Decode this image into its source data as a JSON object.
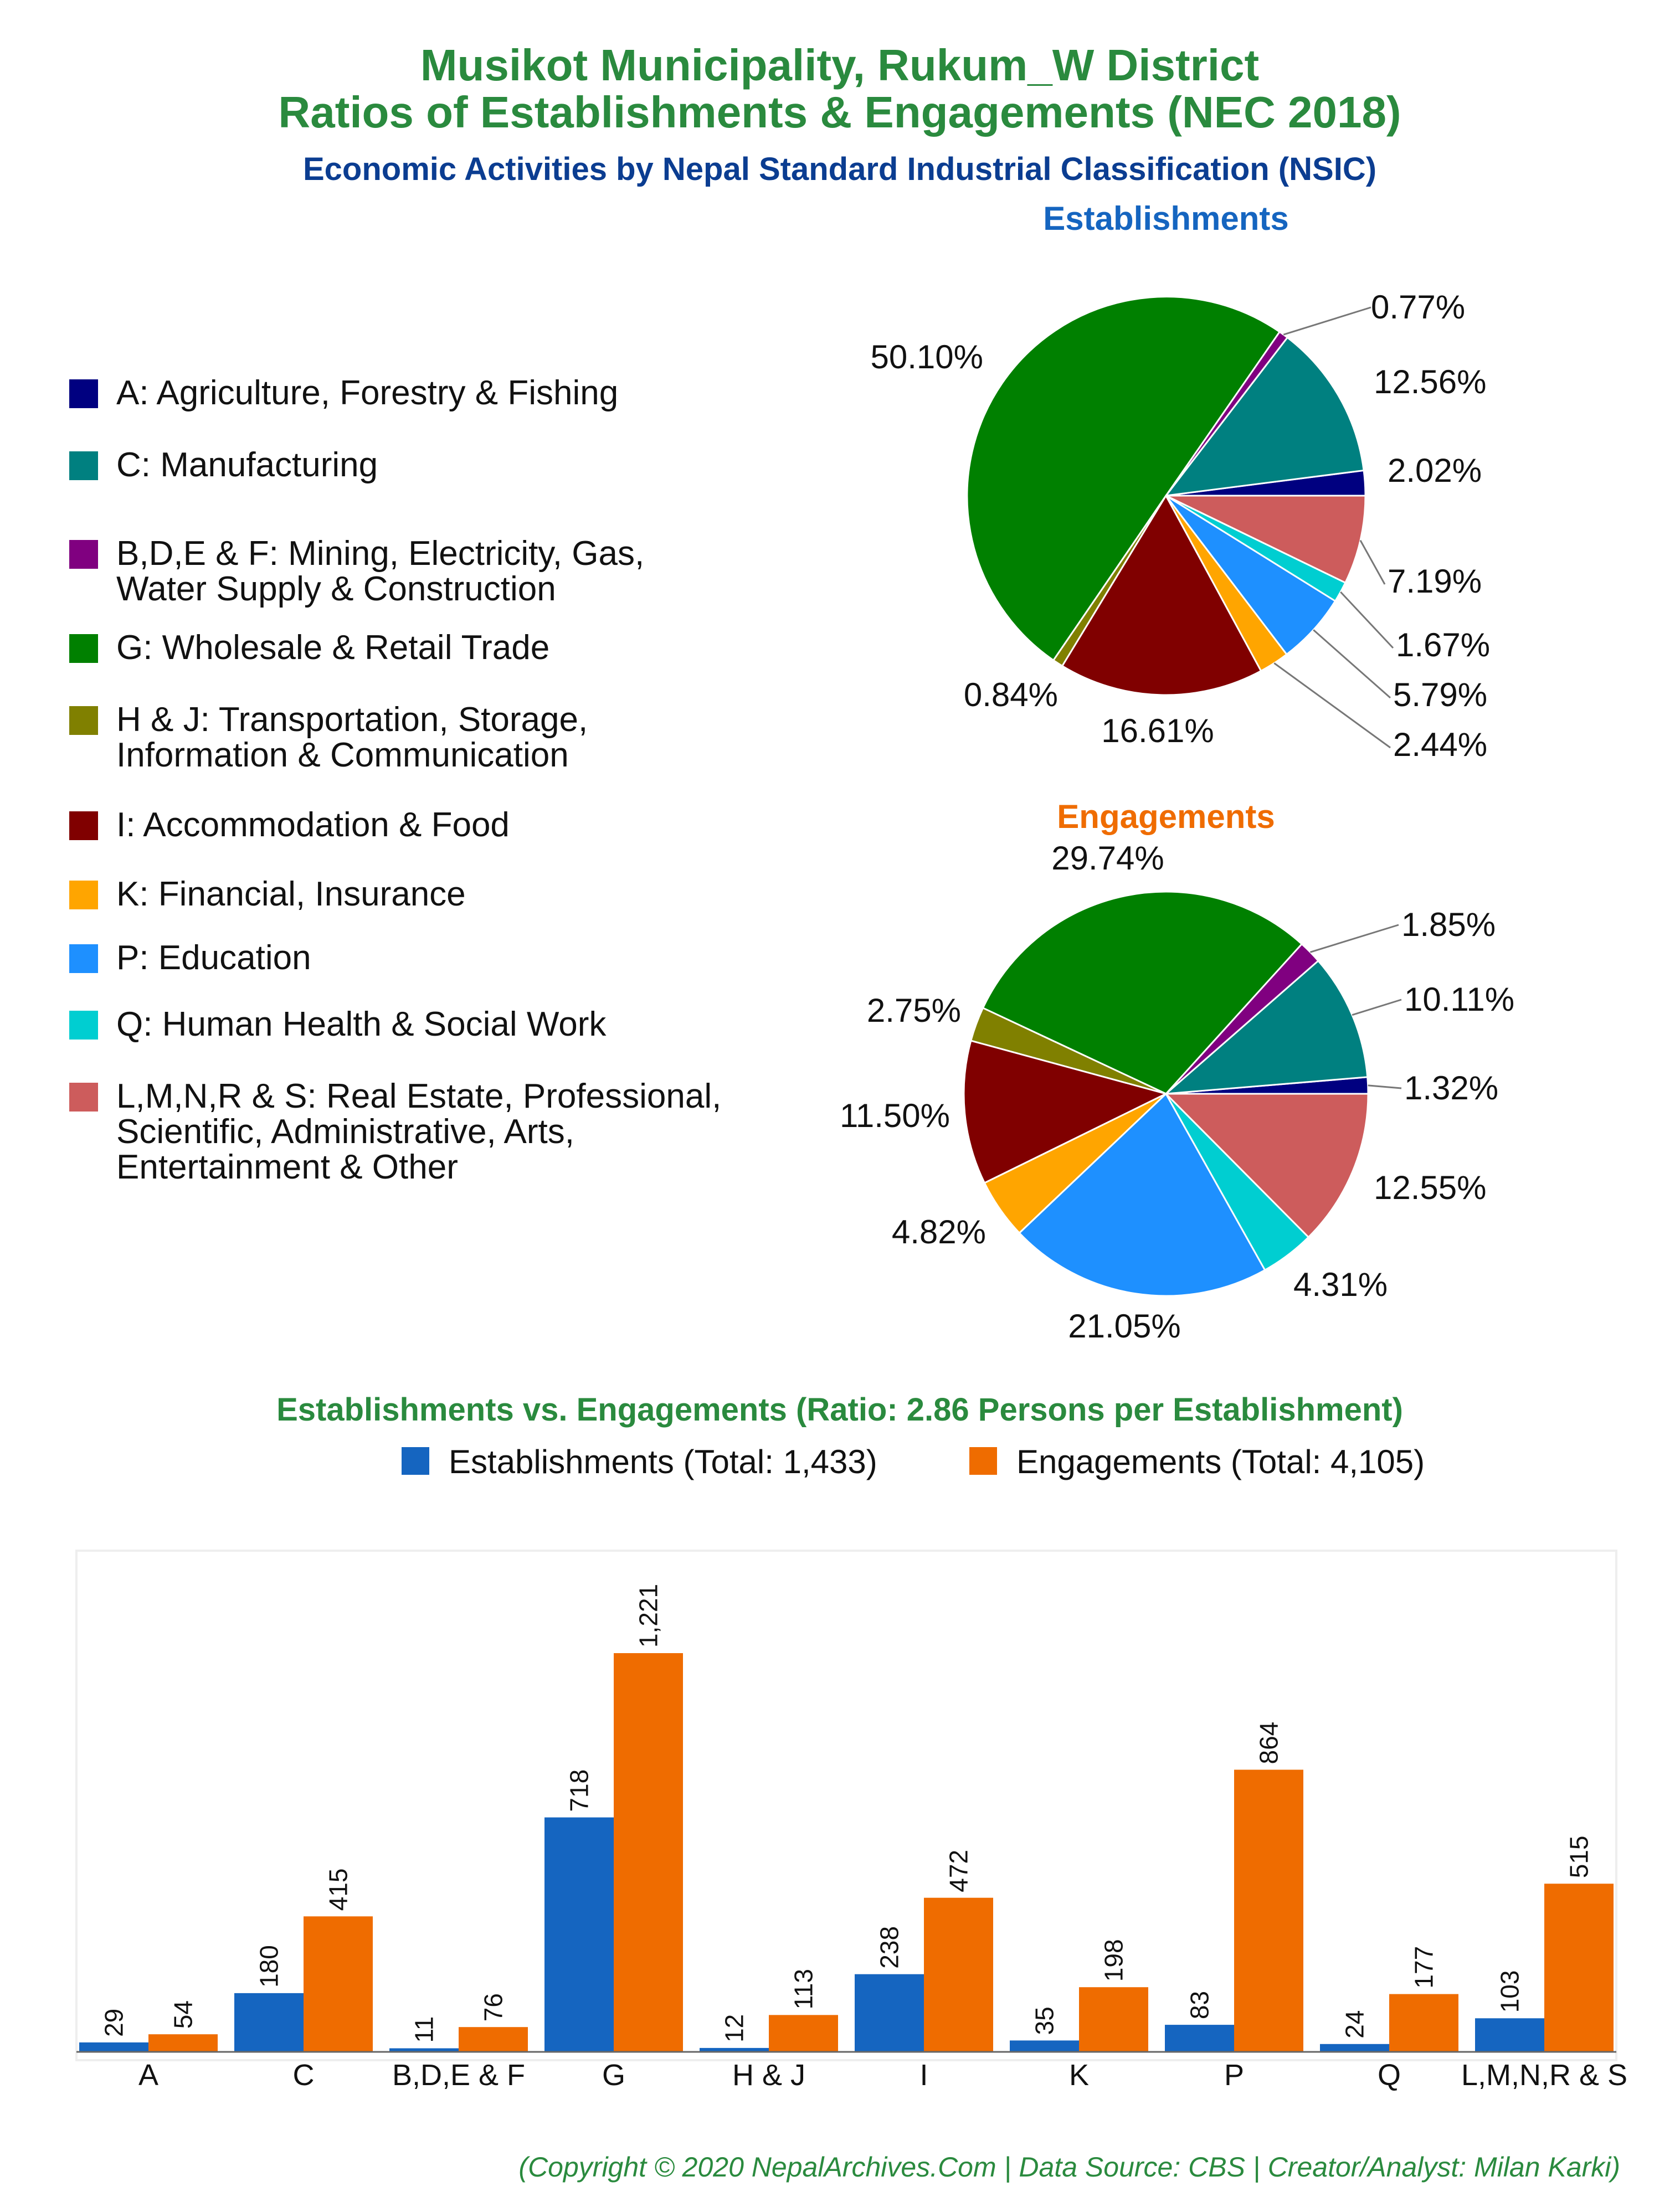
{
  "header": {
    "title_line1": "Musikot Municipality, Rukum_W District",
    "title_line2": "Ratios of Establishments & Engagements (NEC 2018)",
    "subtitle": "Economic Activities by Nepal Standard Industrial Classification (NSIC)"
  },
  "colors": {
    "title_green": "#2a8a3e",
    "subtitle_blue": "#0b3d91",
    "establishments_blue": "#1565c0",
    "engagements_orange": "#ef6c00"
  },
  "legend": [
    {
      "label": "A: Agriculture, Forestry & Fishing",
      "color": "#000080"
    },
    {
      "label": "C: Manufacturing",
      "color": "#008080"
    },
    {
      "label": "B,D,E & F: Mining, Electricity, Gas,\nWater Supply & Construction",
      "color": "#800080"
    },
    {
      "label": "G: Wholesale & Retail Trade",
      "color": "#008000"
    },
    {
      "label": "H & J: Transportation, Storage,\nInformation & Communication",
      "color": "#808000"
    },
    {
      "label": "I: Accommodation & Food",
      "color": "#800000"
    },
    {
      "label": "K: Financial, Insurance",
      "color": "#ffa500"
    },
    {
      "label": "P: Education",
      "color": "#1e90ff"
    },
    {
      "label": "Q: Human Health & Social Work",
      "color": "#00ced1"
    },
    {
      "label": "L,M,N,R & S: Real Estate, Professional,\nScientific, Administrative, Arts,\nEntertainment & Other",
      "color": "#cd5c5c"
    }
  ],
  "chart_data": [
    {
      "type": "pie",
      "title": "Establishments",
      "title_color": "#1565c0",
      "categories": [
        "A",
        "C",
        "B,D,E & F",
        "G",
        "H & J",
        "I",
        "K",
        "P",
        "Q",
        "L,M,N,R & S"
      ],
      "values": [
        2.02,
        12.56,
        0.77,
        50.1,
        0.84,
        16.61,
        2.44,
        5.79,
        1.67,
        7.19
      ],
      "labels": [
        "2.02%",
        "12.56%",
        "0.77%",
        "50.10%",
        "0.84%",
        "16.61%",
        "2.44%",
        "5.79%",
        "1.67%",
        "7.19%"
      ],
      "start": "3 o'clock",
      "direction": "counterclockwise"
    },
    {
      "type": "pie",
      "title": "Engagements",
      "title_color": "#ef6c00",
      "categories": [
        "A",
        "C",
        "B,D,E & F",
        "G",
        "H & J",
        "I",
        "K",
        "P",
        "Q",
        "L,M,N,R & S"
      ],
      "values": [
        1.32,
        10.11,
        1.85,
        29.74,
        2.75,
        11.5,
        4.82,
        21.05,
        4.31,
        12.55
      ],
      "labels": [
        "1.32%",
        "10.11%",
        "1.85%",
        "29.74%",
        "2.75%",
        "11.50%",
        "4.82%",
        "21.05%",
        "4.31%",
        "12.55%"
      ],
      "start": "3 o'clock",
      "direction": "counterclockwise"
    },
    {
      "type": "bar",
      "title": "Establishments vs. Engagements (Ratio: 2.86 Persons per Establishment)",
      "categories": [
        "A",
        "C",
        "B,D,E & F",
        "G",
        "H & J",
        "I",
        "K",
        "P",
        "Q",
        "L,M,N,R & S"
      ],
      "series": [
        {
          "name": "Establishments (Total: 1,433)",
          "color": "#1565c0",
          "values": [
            29,
            180,
            11,
            718,
            12,
            238,
            35,
            83,
            24,
            103
          ]
        },
        {
          "name": "Engagements (Total: 4,105)",
          "color": "#ef6c00",
          "values": [
            54,
            415,
            76,
            1221,
            113,
            472,
            198,
            864,
            177,
            515
          ]
        }
      ],
      "value_labels": true,
      "ylim": [
        0,
        1400
      ],
      "grid": false,
      "legend_position": "top-right"
    }
  ],
  "footer": "(Copyright © 2020 NepalArchives.Com | Data Source: CBS | Creator/Analyst: Milan Karki)"
}
